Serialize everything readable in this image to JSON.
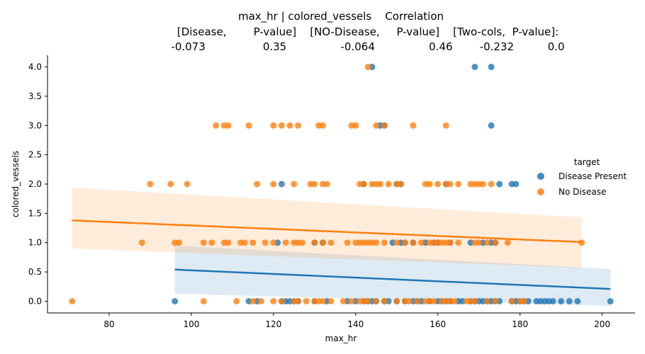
{
  "chart_data": {
    "type": "scatter",
    "title_lines": [
      "max_hr | colored_vessels    Correlation",
      "[Disease,        P-value]    [NO-Disease,     P-value]    [Two-cols,  P-value]:",
      "-0.073                 0.35                -0.064                0.46        -0.232          0.0"
    ],
    "xlabel": "max_hr",
    "ylabel": "colored_vessels",
    "xlim": [
      65,
      208
    ],
    "ylim": [
      -0.2,
      4.2
    ],
    "xticks": [
      80,
      100,
      120,
      140,
      160,
      180,
      200
    ],
    "yticks": [
      0.0,
      0.5,
      1.0,
      1.5,
      2.0,
      2.5,
      3.0,
      3.5,
      4.0
    ],
    "xtick_labels": [
      "80",
      "100",
      "120",
      "140",
      "160",
      "180",
      "200"
    ],
    "ytick_labels": [
      "0.0",
      "0.5",
      "1.0",
      "1.5",
      "2.0",
      "2.5",
      "3.0",
      "3.5",
      "4.0"
    ],
    "legend": {
      "title": "target",
      "placement": "right",
      "entries": [
        {
          "label": "Disease Present",
          "color": "#1f77b4"
        },
        {
          "label": "No Disease",
          "color": "#ff7f0e"
        }
      ]
    },
    "series": [
      {
        "name": "Disease Present",
        "color": "#1f77b4",
        "fit": {
          "x": [
            96,
            202
          ],
          "y": [
            0.54,
            0.21
          ],
          "ci_upper": [
            0.95,
            0.55
          ],
          "ci_lower": [
            0.13,
            -0.08
          ]
        },
        "points": [
          [
            96,
            0
          ],
          [
            114,
            0
          ],
          [
            116,
            0
          ],
          [
            122,
            0
          ],
          [
            123,
            0
          ],
          [
            124,
            0
          ],
          [
            125,
            0
          ],
          [
            126,
            0
          ],
          [
            130,
            0
          ],
          [
            133,
            0
          ],
          [
            138,
            0
          ],
          [
            140,
            0
          ],
          [
            142,
            0
          ],
          [
            143,
            0
          ],
          [
            144,
            0
          ],
          [
            145,
            0
          ],
          [
            147,
            0
          ],
          [
            148,
            0
          ],
          [
            150,
            0
          ],
          [
            152,
            0
          ],
          [
            154,
            0
          ],
          [
            155,
            0
          ],
          [
            156,
            0
          ],
          [
            158,
            0
          ],
          [
            160,
            0
          ],
          [
            161,
            0
          ],
          [
            162,
            0
          ],
          [
            163,
            0
          ],
          [
            165,
            0
          ],
          [
            166,
            0
          ],
          [
            168,
            0
          ],
          [
            169,
            0
          ],
          [
            170,
            0
          ],
          [
            171,
            0
          ],
          [
            172,
            0
          ],
          [
            173,
            0
          ],
          [
            174,
            0
          ],
          [
            175,
            0
          ],
          [
            178,
            0
          ],
          [
            179,
            0
          ],
          [
            180,
            0
          ],
          [
            181,
            0
          ],
          [
            182,
            0
          ],
          [
            184,
            0
          ],
          [
            185,
            0
          ],
          [
            186,
            0
          ],
          [
            187,
            0
          ],
          [
            188,
            0
          ],
          [
            190,
            0
          ],
          [
            192,
            0
          ],
          [
            194,
            0
          ],
          [
            202,
            0
          ],
          [
            121,
            1
          ],
          [
            130,
            1
          ],
          [
            132,
            1
          ],
          [
            149,
            1
          ],
          [
            151,
            1
          ],
          [
            152,
            1
          ],
          [
            154,
            1
          ],
          [
            157,
            1
          ],
          [
            159,
            1
          ],
          [
            160,
            1
          ],
          [
            163,
            1
          ],
          [
            168,
            1
          ],
          [
            171,
            1
          ],
          [
            173,
            1
          ],
          [
            174,
            1
          ],
          [
            122,
            2
          ],
          [
            142,
            2
          ],
          [
            150,
            2
          ],
          [
            151,
            2
          ],
          [
            162,
            2
          ],
          [
            175,
            2
          ],
          [
            178,
            2
          ],
          [
            179,
            2
          ],
          [
            146,
            3
          ],
          [
            147,
            3
          ],
          [
            173,
            3
          ],
          [
            144,
            4
          ],
          [
            169,
            4
          ],
          [
            173,
            4
          ]
        ]
      },
      {
        "name": "No Disease",
        "color": "#ff7f0e",
        "fit": {
          "x": [
            71,
            195
          ],
          "y": [
            1.38,
            1.01
          ],
          "ci_upper": [
            1.94,
            1.43
          ],
          "ci_lower": [
            0.9,
            0.57
          ]
        },
        "points": [
          [
            71,
            0
          ],
          [
            103,
            0
          ],
          [
            111,
            0
          ],
          [
            115,
            0
          ],
          [
            117,
            0
          ],
          [
            120,
            0
          ],
          [
            122,
            0
          ],
          [
            125,
            0
          ],
          [
            126,
            0
          ],
          [
            128,
            0
          ],
          [
            130,
            0
          ],
          [
            131,
            0
          ],
          [
            132,
            0
          ],
          [
            134,
            0
          ],
          [
            137,
            0
          ],
          [
            139,
            0
          ],
          [
            141,
            0
          ],
          [
            142,
            0
          ],
          [
            143,
            0
          ],
          [
            145,
            0
          ],
          [
            147,
            0
          ],
          [
            150,
            0
          ],
          [
            152,
            0
          ],
          [
            153,
            0
          ],
          [
            155,
            0
          ],
          [
            157,
            0
          ],
          [
            158,
            0
          ],
          [
            159,
            0
          ],
          [
            161,
            0
          ],
          [
            162,
            0
          ],
          [
            163,
            0
          ],
          [
            164,
            0
          ],
          [
            167,
            0
          ],
          [
            168,
            0
          ],
          [
            169,
            0
          ],
          [
            172,
            0
          ],
          [
            174,
            0
          ],
          [
            178,
            0
          ],
          [
            180,
            0
          ],
          [
            181,
            0
          ],
          [
            88,
            1
          ],
          [
            96,
            1
          ],
          [
            97,
            1
          ],
          [
            103,
            1
          ],
          [
            105,
            1
          ],
          [
            108,
            1
          ],
          [
            109,
            1
          ],
          [
            112,
            1
          ],
          [
            113,
            1
          ],
          [
            115,
            1
          ],
          [
            118,
            1
          ],
          [
            120,
            1
          ],
          [
            123,
            1
          ],
          [
            125,
            1
          ],
          [
            126,
            1
          ],
          [
            127,
            1
          ],
          [
            130,
            1
          ],
          [
            132,
            1
          ],
          [
            134,
            1
          ],
          [
            138,
            1
          ],
          [
            140,
            1
          ],
          [
            141,
            1
          ],
          [
            142,
            1
          ],
          [
            143,
            1
          ],
          [
            144,
            1
          ],
          [
            145,
            1
          ],
          [
            147,
            1
          ],
          [
            150,
            1
          ],
          [
            152,
            1
          ],
          [
            154,
            1
          ],
          [
            156,
            1
          ],
          [
            158,
            1
          ],
          [
            159,
            1
          ],
          [
            160,
            1
          ],
          [
            161,
            1
          ],
          [
            162,
            1
          ],
          [
            163,
            1
          ],
          [
            165,
            1
          ],
          [
            169,
            1
          ],
          [
            170,
            1
          ],
          [
            172,
            1
          ],
          [
            174,
            1
          ],
          [
            177,
            1
          ],
          [
            195,
            1
          ],
          [
            90,
            2
          ],
          [
            95,
            2
          ],
          [
            99,
            2
          ],
          [
            116,
            2
          ],
          [
            120,
            2
          ],
          [
            125,
            2
          ],
          [
            129,
            2
          ],
          [
            130,
            2
          ],
          [
            132,
            2
          ],
          [
            133,
            2
          ],
          [
            141,
            2
          ],
          [
            142,
            2
          ],
          [
            144,
            2
          ],
          [
            145,
            2
          ],
          [
            146,
            2
          ],
          [
            148,
            2
          ],
          [
            150,
            2
          ],
          [
            151,
            2
          ],
          [
            157,
            2
          ],
          [
            158,
            2
          ],
          [
            160,
            2
          ],
          [
            162,
            2
          ],
          [
            163,
            2
          ],
          [
            165,
            2
          ],
          [
            168,
            2
          ],
          [
            169,
            2
          ],
          [
            170,
            2
          ],
          [
            171,
            2
          ],
          [
            173,
            2
          ],
          [
            106,
            3
          ],
          [
            108,
            3
          ],
          [
            109,
            3
          ],
          [
            114,
            3
          ],
          [
            120,
            3
          ],
          [
            122,
            3
          ],
          [
            124,
            3
          ],
          [
            126,
            3
          ],
          [
            131,
            3
          ],
          [
            132,
            3
          ],
          [
            139,
            3
          ],
          [
            140,
            3
          ],
          [
            145,
            3
          ],
          [
            147,
            3
          ],
          [
            154,
            3
          ],
          [
            162,
            3
          ],
          [
            143,
            4
          ]
        ]
      }
    ]
  }
}
